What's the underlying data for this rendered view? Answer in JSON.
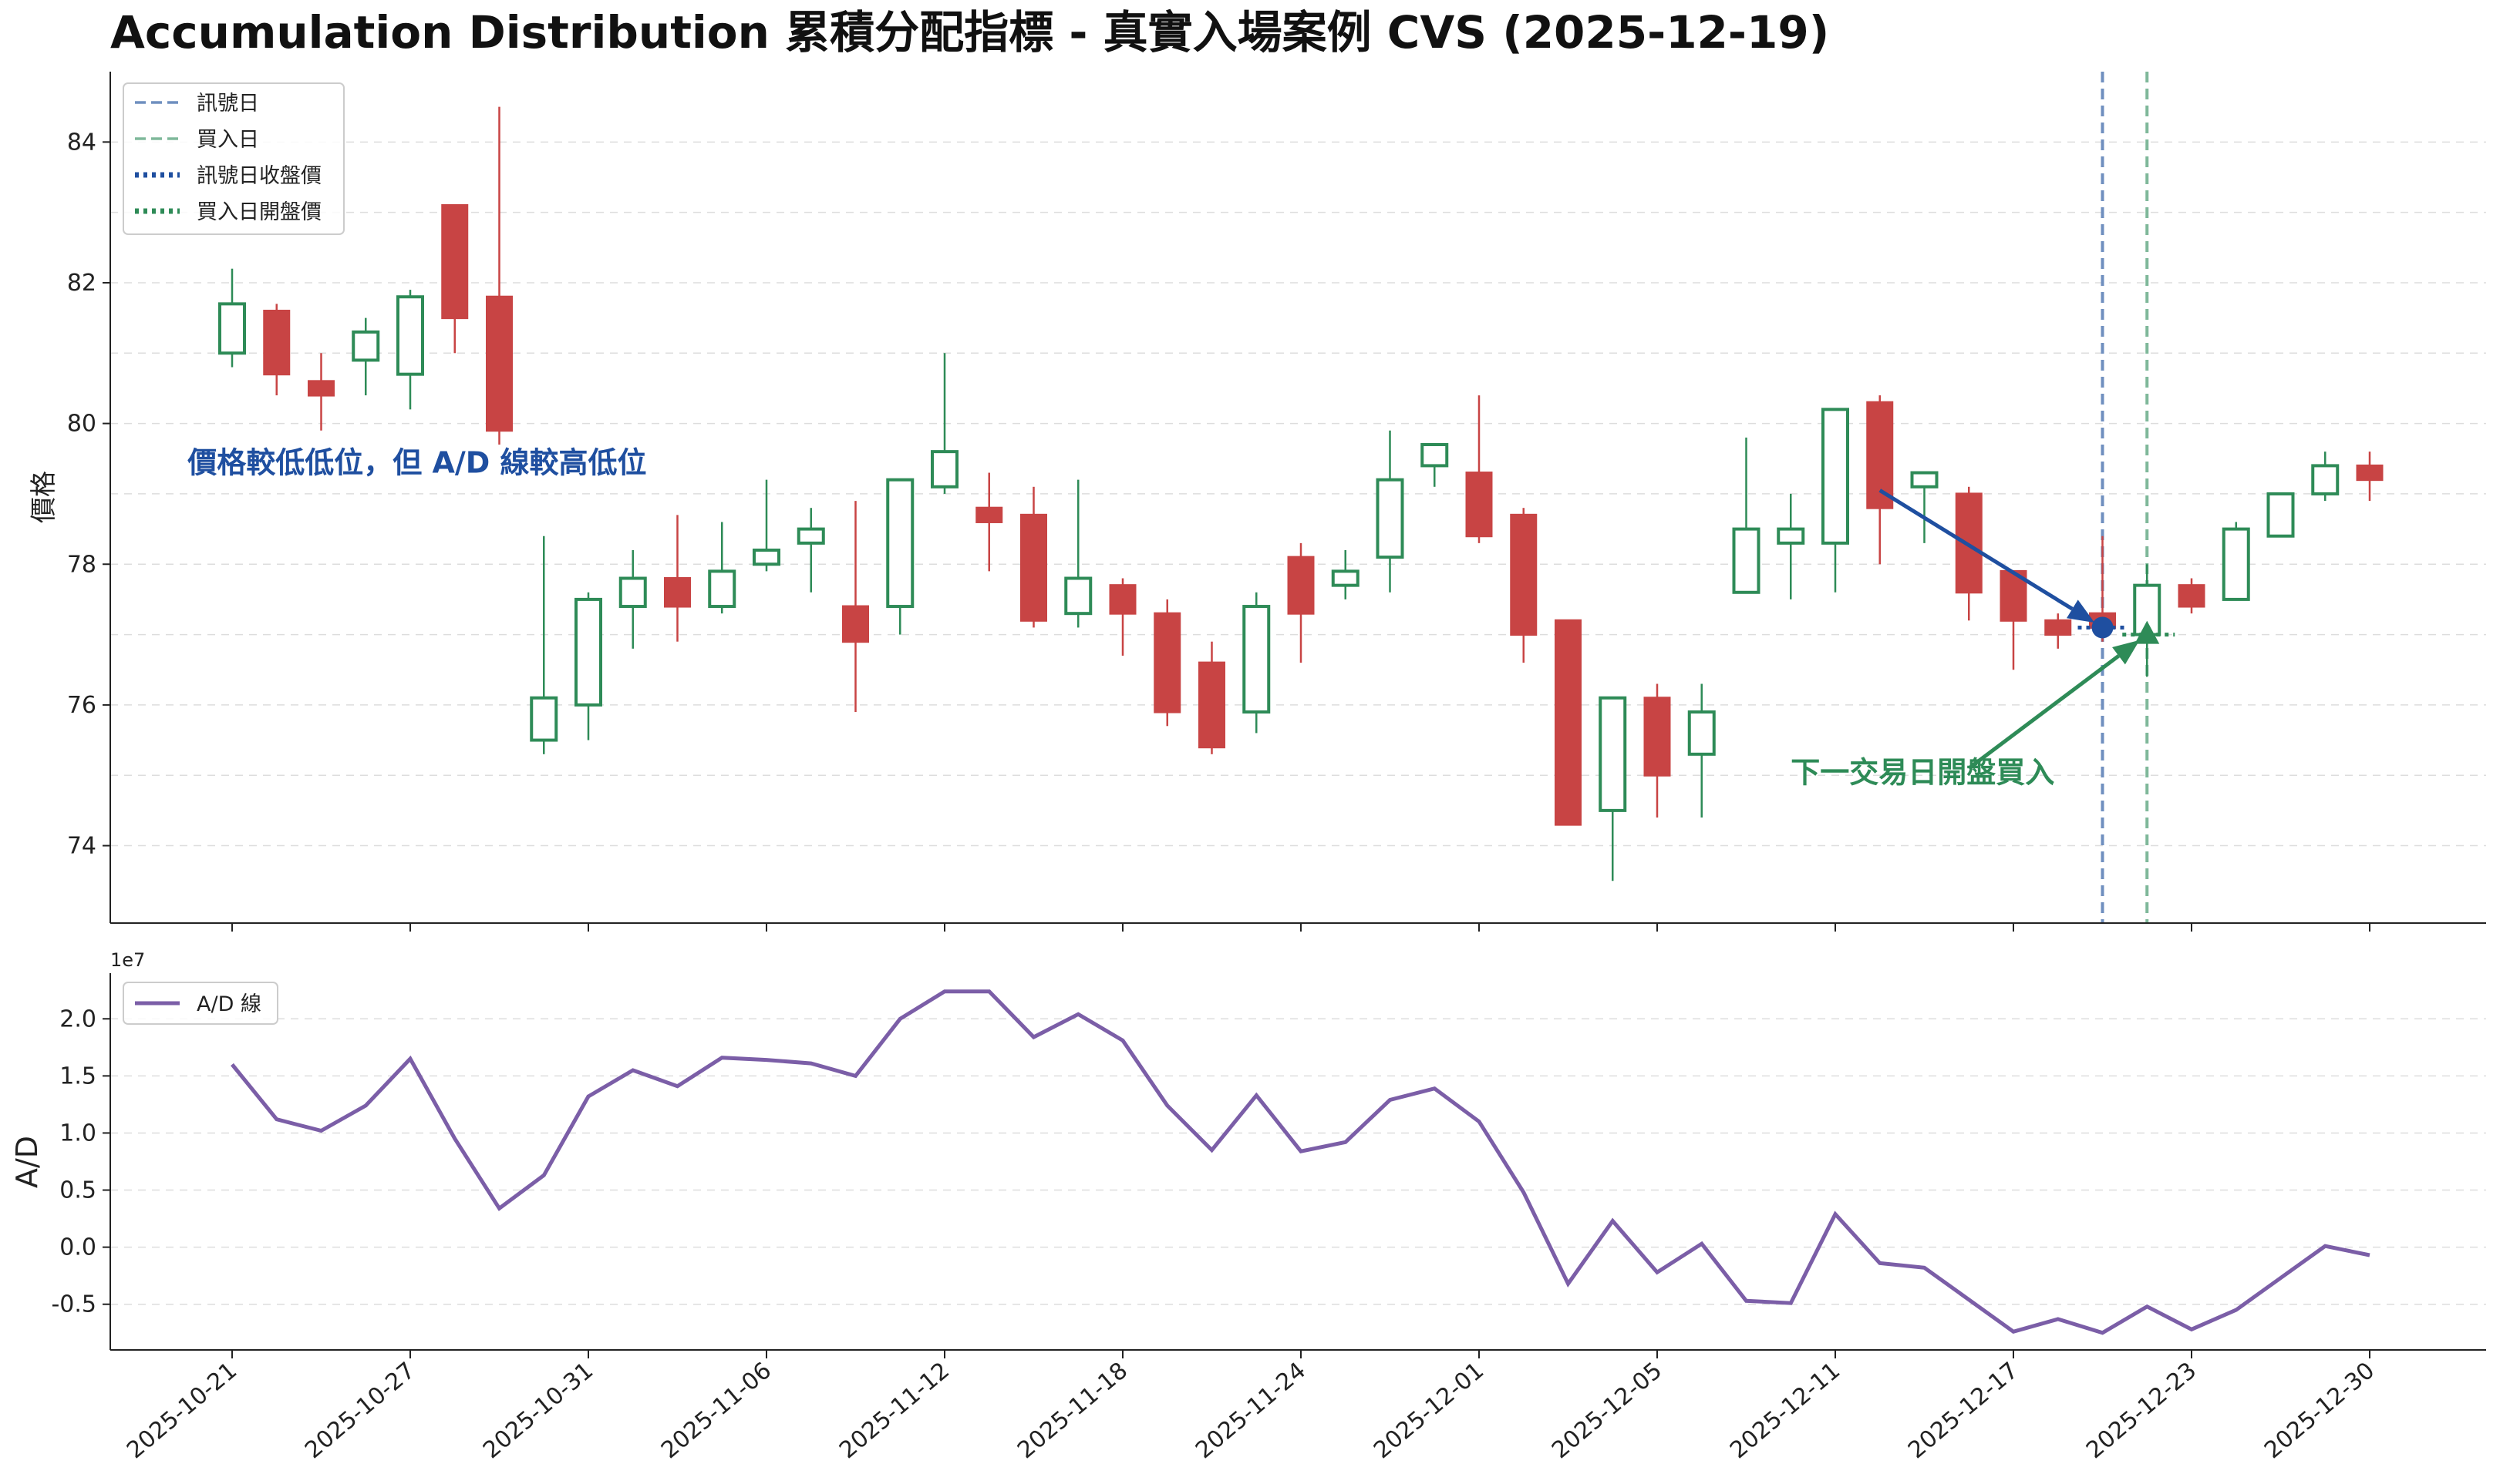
{
  "title": "Accumulation Distribution 累積分配指標 - 真實入場案例 CVS (2025-12-19)",
  "colors": {
    "up": "#2e8b57",
    "down": "#c84444",
    "signal_line": "#6f8fbf",
    "buy_line": "#7fb89a",
    "signal_marker": "#1f4fa0",
    "buy_marker": "#2e8b57",
    "ad_line": "#7b5ea7",
    "grid": "#dddddd"
  },
  "chart_data": [
    {
      "type": "candlestick",
      "ylabel": "價格",
      "ylim": [
        72.9,
        85.0
      ],
      "yticks": [
        "74",
        "76",
        "78",
        "80",
        "82",
        "84"
      ],
      "legend": {
        "position": "top-left",
        "items": [
          {
            "label": "訊號日",
            "style": "dashed",
            "color": "#6f8fbf"
          },
          {
            "label": "買入日",
            "style": "dashed",
            "color": "#7fb89a"
          },
          {
            "label": "訊號日收盤價",
            "style": "dotted",
            "color": "#1f4fa0"
          },
          {
            "label": "買入日開盤價",
            "style": "dotted",
            "color": "#2e8b57"
          }
        ]
      },
      "candles": [
        {
          "date": "2025-10-21",
          "open": 81.0,
          "high": 82.2,
          "low": 80.8,
          "close": 81.7
        },
        {
          "date": "2025-10-22",
          "open": 81.6,
          "high": 81.7,
          "low": 80.4,
          "close": 80.7
        },
        {
          "date": "2025-10-23",
          "open": 80.6,
          "high": 81.0,
          "low": 79.9,
          "close": 80.4
        },
        {
          "date": "2025-10-24",
          "open": 80.9,
          "high": 81.5,
          "low": 80.4,
          "close": 81.3
        },
        {
          "date": "2025-10-27",
          "open": 80.7,
          "high": 81.9,
          "low": 80.2,
          "close": 81.8
        },
        {
          "date": "2025-10-28",
          "open": 83.1,
          "high": 83.1,
          "low": 81.0,
          "close": 81.5
        },
        {
          "date": "2025-10-29",
          "open": 81.8,
          "high": 84.5,
          "low": 79.7,
          "close": 79.9
        },
        {
          "date": "2025-10-30",
          "open": 75.5,
          "high": 78.4,
          "low": 75.3,
          "close": 76.1
        },
        {
          "date": "2025-10-31",
          "open": 76.0,
          "high": 77.6,
          "low": 75.5,
          "close": 77.5
        },
        {
          "date": "2025-11-03",
          "open": 77.4,
          "high": 78.2,
          "low": 76.8,
          "close": 77.8
        },
        {
          "date": "2025-11-04",
          "open": 77.8,
          "high": 78.7,
          "low": 76.9,
          "close": 77.4
        },
        {
          "date": "2025-11-05",
          "open": 77.4,
          "high": 78.6,
          "low": 77.3,
          "close": 77.9
        },
        {
          "date": "2025-11-06",
          "open": 78.0,
          "high": 79.2,
          "low": 77.9,
          "close": 78.2
        },
        {
          "date": "2025-11-07",
          "open": 78.3,
          "high": 78.8,
          "low": 77.6,
          "close": 78.5
        },
        {
          "date": "2025-11-10",
          "open": 77.4,
          "high": 78.9,
          "low": 75.9,
          "close": 76.9
        },
        {
          "date": "2025-11-11",
          "open": 77.4,
          "high": 79.2,
          "low": 77.0,
          "close": 79.2
        },
        {
          "date": "2025-11-12",
          "open": 79.1,
          "high": 81.0,
          "low": 79.0,
          "close": 79.6
        },
        {
          "date": "2025-11-13",
          "open": 78.8,
          "high": 79.3,
          "low": 77.9,
          "close": 78.6
        },
        {
          "date": "2025-11-14",
          "open": 78.7,
          "high": 79.1,
          "low": 77.1,
          "close": 77.2
        },
        {
          "date": "2025-11-17",
          "open": 77.3,
          "high": 79.2,
          "low": 77.1,
          "close": 77.8
        },
        {
          "date": "2025-11-18",
          "open": 77.7,
          "high": 77.8,
          "low": 76.7,
          "close": 77.3
        },
        {
          "date": "2025-11-19",
          "open": 77.3,
          "high": 77.5,
          "low": 75.7,
          "close": 75.9
        },
        {
          "date": "2025-11-20",
          "open": 76.6,
          "high": 76.9,
          "low": 75.3,
          "close": 75.4
        },
        {
          "date": "2025-11-21",
          "open": 75.9,
          "high": 77.6,
          "low": 75.6,
          "close": 77.4
        },
        {
          "date": "2025-11-24",
          "open": 78.1,
          "high": 78.3,
          "low": 76.6,
          "close": 77.3
        },
        {
          "date": "2025-11-25",
          "open": 77.7,
          "high": 78.2,
          "low": 77.5,
          "close": 77.9
        },
        {
          "date": "2025-11-26",
          "open": 78.1,
          "high": 79.9,
          "low": 77.6,
          "close": 79.2
        },
        {
          "date": "2025-11-28",
          "open": 79.4,
          "high": 79.7,
          "low": 79.1,
          "close": 79.7
        },
        {
          "date": "2025-12-01",
          "open": 79.3,
          "high": 80.4,
          "low": 78.3,
          "close": 78.4
        },
        {
          "date": "2025-12-02",
          "open": 78.7,
          "high": 78.8,
          "low": 76.6,
          "close": 77.0
        },
        {
          "date": "2025-12-03",
          "open": 77.2,
          "high": 77.2,
          "low": 74.3,
          "close": 74.3
        },
        {
          "date": "2025-12-04",
          "open": 74.5,
          "high": 76.1,
          "low": 73.5,
          "close": 76.1
        },
        {
          "date": "2025-12-05",
          "open": 76.1,
          "high": 76.3,
          "low": 74.4,
          "close": 75.0
        },
        {
          "date": "2025-12-08",
          "open": 75.3,
          "high": 76.3,
          "low": 74.4,
          "close": 75.9
        },
        {
          "date": "2025-12-09",
          "open": 77.6,
          "high": 79.8,
          "low": 77.6,
          "close": 78.5
        },
        {
          "date": "2025-12-10",
          "open": 78.3,
          "high": 79.0,
          "low": 77.5,
          "close": 78.5
        },
        {
          "date": "2025-12-11",
          "open": 78.3,
          "high": 80.2,
          "low": 77.6,
          "close": 80.2
        },
        {
          "date": "2025-12-12",
          "open": 80.3,
          "high": 80.4,
          "low": 78.0,
          "close": 78.8
        },
        {
          "date": "2025-12-15",
          "open": 79.1,
          "high": 79.3,
          "low": 78.3,
          "close": 79.3
        },
        {
          "date": "2025-12-16",
          "open": 79.0,
          "high": 79.1,
          "low": 77.2,
          "close": 77.6
        },
        {
          "date": "2025-12-17",
          "open": 77.9,
          "high": 77.9,
          "low": 76.5,
          "close": 77.2
        },
        {
          "date": "2025-12-18",
          "open": 77.2,
          "high": 77.3,
          "low": 76.8,
          "close": 77.0
        },
        {
          "date": "2025-12-19",
          "open": 77.3,
          "high": 78.4,
          "low": 76.9,
          "close": 77.1
        },
        {
          "date": "2025-12-22",
          "open": 77.0,
          "high": 78.0,
          "low": 76.4,
          "close": 77.7
        },
        {
          "date": "2025-12-23",
          "open": 77.7,
          "high": 77.8,
          "low": 77.3,
          "close": 77.4
        },
        {
          "date": "2025-12-24",
          "open": 77.5,
          "high": 78.6,
          "low": 77.5,
          "close": 78.5
        },
        {
          "date": "2025-12-26",
          "open": 78.4,
          "high": 79.0,
          "low": 78.4,
          "close": 79.0
        },
        {
          "date": "2025-12-29",
          "open": 79.0,
          "high": 79.6,
          "low": 78.9,
          "close": 79.4
        },
        {
          "date": "2025-12-30",
          "open": 79.4,
          "high": 79.6,
          "low": 78.9,
          "close": 79.2
        }
      ],
      "signal": {
        "date": "2025-12-19",
        "close": 77.1
      },
      "buy": {
        "date": "2025-12-22",
        "open": 77.0
      },
      "annotations": [
        {
          "text": "價格較低低位，但 A/D 線較高低位",
          "color": "#1f4fa0",
          "text_at": {
            "date": "2025-12-06",
            "y": 79.3
          },
          "arrow_from": {
            "date": "2025-12-12",
            "y": 79.05
          },
          "arrow_to": {
            "date": "2025-12-19",
            "y": 77.1
          }
        },
        {
          "text": "下一交易日開盤買入",
          "color": "#2e8b57",
          "text_at": {
            "date": "2025-12-10",
            "y": 74.9
          },
          "arrow_from": {
            "date": "2025-12-16",
            "y": 75.1
          },
          "arrow_to": {
            "date": "2025-12-22",
            "y": 77.0
          }
        }
      ]
    },
    {
      "type": "line",
      "ylabel": "A/D",
      "scale_label": "1e7",
      "ylim": [
        -0.9,
        2.4
      ],
      "yticks": [
        "-0.5",
        "0.0",
        "0.5",
        "1.0",
        "1.5",
        "2.0"
      ],
      "legend": {
        "position": "top-left"
      },
      "series": [
        {
          "name": "A/D 線",
          "values": [
            1.6,
            1.12,
            1.02,
            1.24,
            1.65,
            0.95,
            0.34,
            0.63,
            1.32,
            1.55,
            1.41,
            1.66,
            1.64,
            1.61,
            1.5,
            2.0,
            2.24,
            2.24,
            1.84,
            2.04,
            1.81,
            1.24,
            0.85,
            1.33,
            0.84,
            0.92,
            1.29,
            1.39,
            1.1,
            0.48,
            -0.32,
            0.23,
            -0.22,
            0.03,
            -0.47,
            -0.49,
            0.29,
            -0.14,
            -0.18,
            -0.46,
            -0.74,
            -0.63,
            -0.75,
            -0.52,
            -0.72,
            -0.55,
            -0.27,
            0.01,
            -0.07
          ]
        }
      ]
    }
  ],
  "x_tick_labels": [
    "2025-10-21",
    "2025-10-27",
    "2025-10-31",
    "2025-11-06",
    "2025-11-12",
    "2025-11-18",
    "2025-11-24",
    "2025-12-01",
    "2025-12-05",
    "2025-12-11",
    "2025-12-17",
    "2025-12-23",
    "2025-12-30"
  ]
}
